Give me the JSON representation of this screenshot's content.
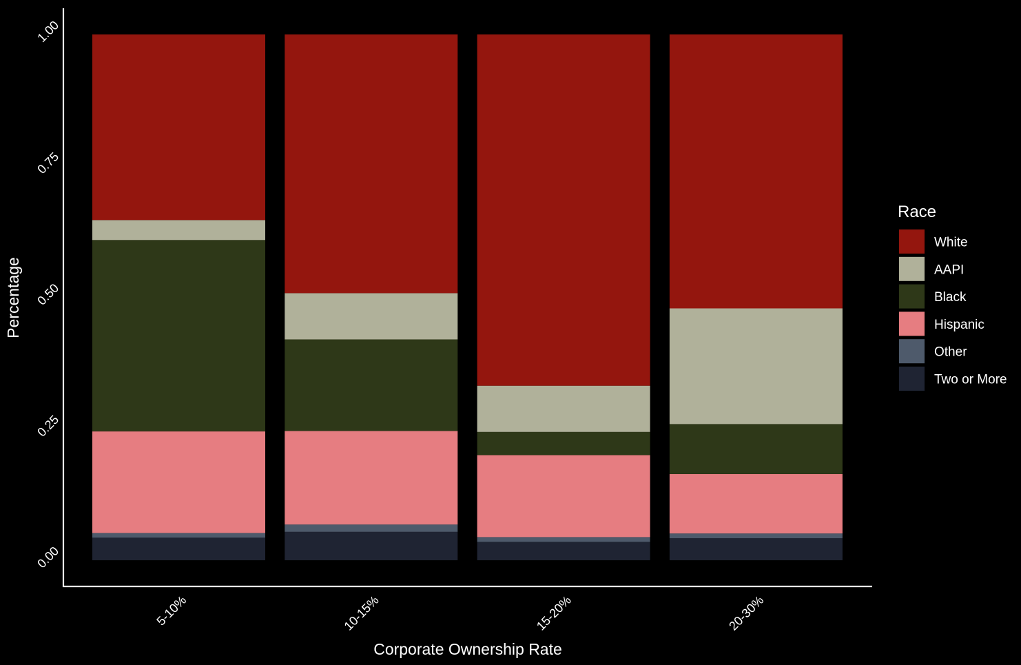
{
  "chart_data": {
    "type": "bar",
    "stacked": true,
    "normalized": true,
    "title": "",
    "xlabel": "Corporate Ownership Rate",
    "ylabel": "Percentage",
    "categories": [
      "5-10%",
      "10-15%",
      "15-20%",
      "20-30%"
    ],
    "ylim": [
      0,
      1
    ],
    "yticks": [
      "0.00",
      "0.25",
      "0.50",
      "0.75",
      "1.00"
    ],
    "legend": {
      "title": "Race",
      "position": "right"
    },
    "series": [
      {
        "name": "Two or More",
        "color": "#1f2433",
        "values": [
          0.043,
          0.054,
          0.035,
          0.042
        ]
      },
      {
        "name": "Other",
        "color": "#4e5a6b",
        "values": [
          0.009,
          0.014,
          0.009,
          0.009
        ]
      },
      {
        "name": "Hispanic",
        "color": "#e67d81",
        "values": [
          0.193,
          0.178,
          0.156,
          0.113
        ]
      },
      {
        "name": "Black",
        "color": "#2e3818",
        "values": [
          0.364,
          0.174,
          0.044,
          0.095
        ]
      },
      {
        "name": "AAPI",
        "color": "#b0b19a",
        "values": [
          0.038,
          0.088,
          0.088,
          0.22
        ]
      },
      {
        "name": "White",
        "color": "#94160e",
        "values": [
          0.353,
          0.492,
          0.668,
          0.521
        ]
      }
    ],
    "legend_order": [
      "White",
      "AAPI",
      "Black",
      "Hispanic",
      "Other",
      "Two or More"
    ],
    "grid": false,
    "background": "#000000",
    "axis_color": "#ffffff"
  }
}
